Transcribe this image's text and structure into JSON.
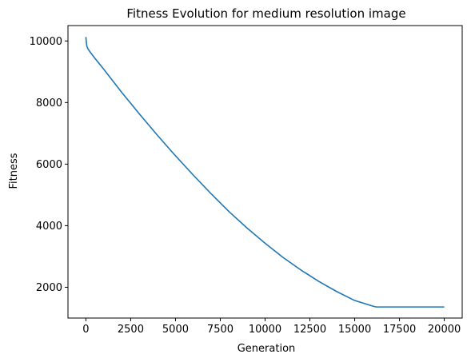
{
  "chart_data": {
    "type": "line",
    "title": "Fitness Evolution for medium resolution image",
    "xlabel": "Generation",
    "ylabel": "Fitness",
    "xlim": [
      -1000,
      21000
    ],
    "ylim": [
      1000,
      10500
    ],
    "grid": false,
    "legend": "none",
    "x_ticks": [
      0,
      2500,
      5000,
      7500,
      10000,
      12500,
      15000,
      17500,
      20000
    ],
    "x_tick_labels": [
      "0",
      "2500",
      "5000",
      "7500",
      "10000",
      "12500",
      "15000",
      "17500",
      "20000"
    ],
    "y_ticks": [
      2000,
      4000,
      6000,
      8000,
      10000
    ],
    "y_tick_labels": [
      "2000",
      "4000",
      "6000",
      "8000",
      "10000"
    ],
    "series": [
      {
        "name": "Fitness",
        "color": "#1f77b4",
        "x": [
          0,
          20,
          50,
          100,
          200,
          500,
          1000,
          2000,
          3000,
          4000,
          5000,
          6000,
          7000,
          8000,
          9000,
          10000,
          11000,
          12000,
          13000,
          14000,
          15000,
          16000,
          16200,
          17000,
          18000,
          19000,
          20000
        ],
        "y": [
          10130,
          9990,
          9840,
          9760,
          9670,
          9440,
          9080,
          8330,
          7620,
          6930,
          6270,
          5640,
          5030,
          4450,
          3920,
          3430,
          2970,
          2560,
          2190,
          1860,
          1570,
          1390,
          1360,
          1360,
          1360,
          1360,
          1360
        ]
      }
    ]
  }
}
